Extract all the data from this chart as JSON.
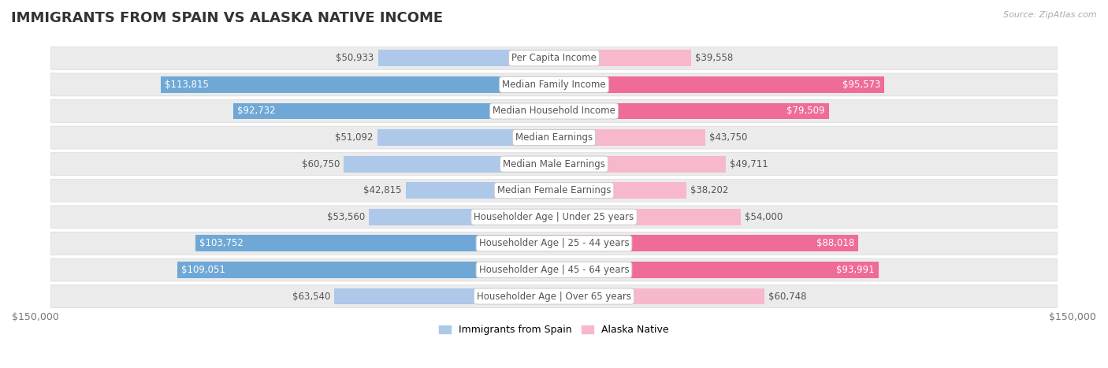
{
  "title": "IMMIGRANTS FROM SPAIN VS ALASKA NATIVE INCOME",
  "source": "Source: ZipAtlas.com",
  "categories": [
    "Per Capita Income",
    "Median Family Income",
    "Median Household Income",
    "Median Earnings",
    "Median Male Earnings",
    "Median Female Earnings",
    "Householder Age | Under 25 years",
    "Householder Age | 25 - 44 years",
    "Householder Age | 45 - 64 years",
    "Householder Age | Over 65 years"
  ],
  "spain_values": [
    50933,
    113815,
    92732,
    51092,
    60750,
    42815,
    53560,
    103752,
    109051,
    63540
  ],
  "native_values": [
    39558,
    95573,
    79509,
    43750,
    49711,
    38202,
    54000,
    88018,
    93991,
    60748
  ],
  "spain_color_light": "#adc8e8",
  "spain_color_dark": "#6fa8d6",
  "native_color_light": "#f7b8cc",
  "native_color_dark": "#ef6b98",
  "spain_dark_threshold": 75000,
  "native_dark_threshold": 75000,
  "row_bg_color": "#f0f0f0",
  "row_pill_color": "#e8e8e8",
  "max_value": 150000,
  "xlabel_left": "$150,000",
  "xlabel_right": "$150,000",
  "legend_spain": "Immigrants from Spain",
  "legend_native": "Alaska Native",
  "title_fontsize": 13,
  "label_fontsize": 8.5,
  "category_fontsize": 8.5,
  "source_fontsize": 8
}
